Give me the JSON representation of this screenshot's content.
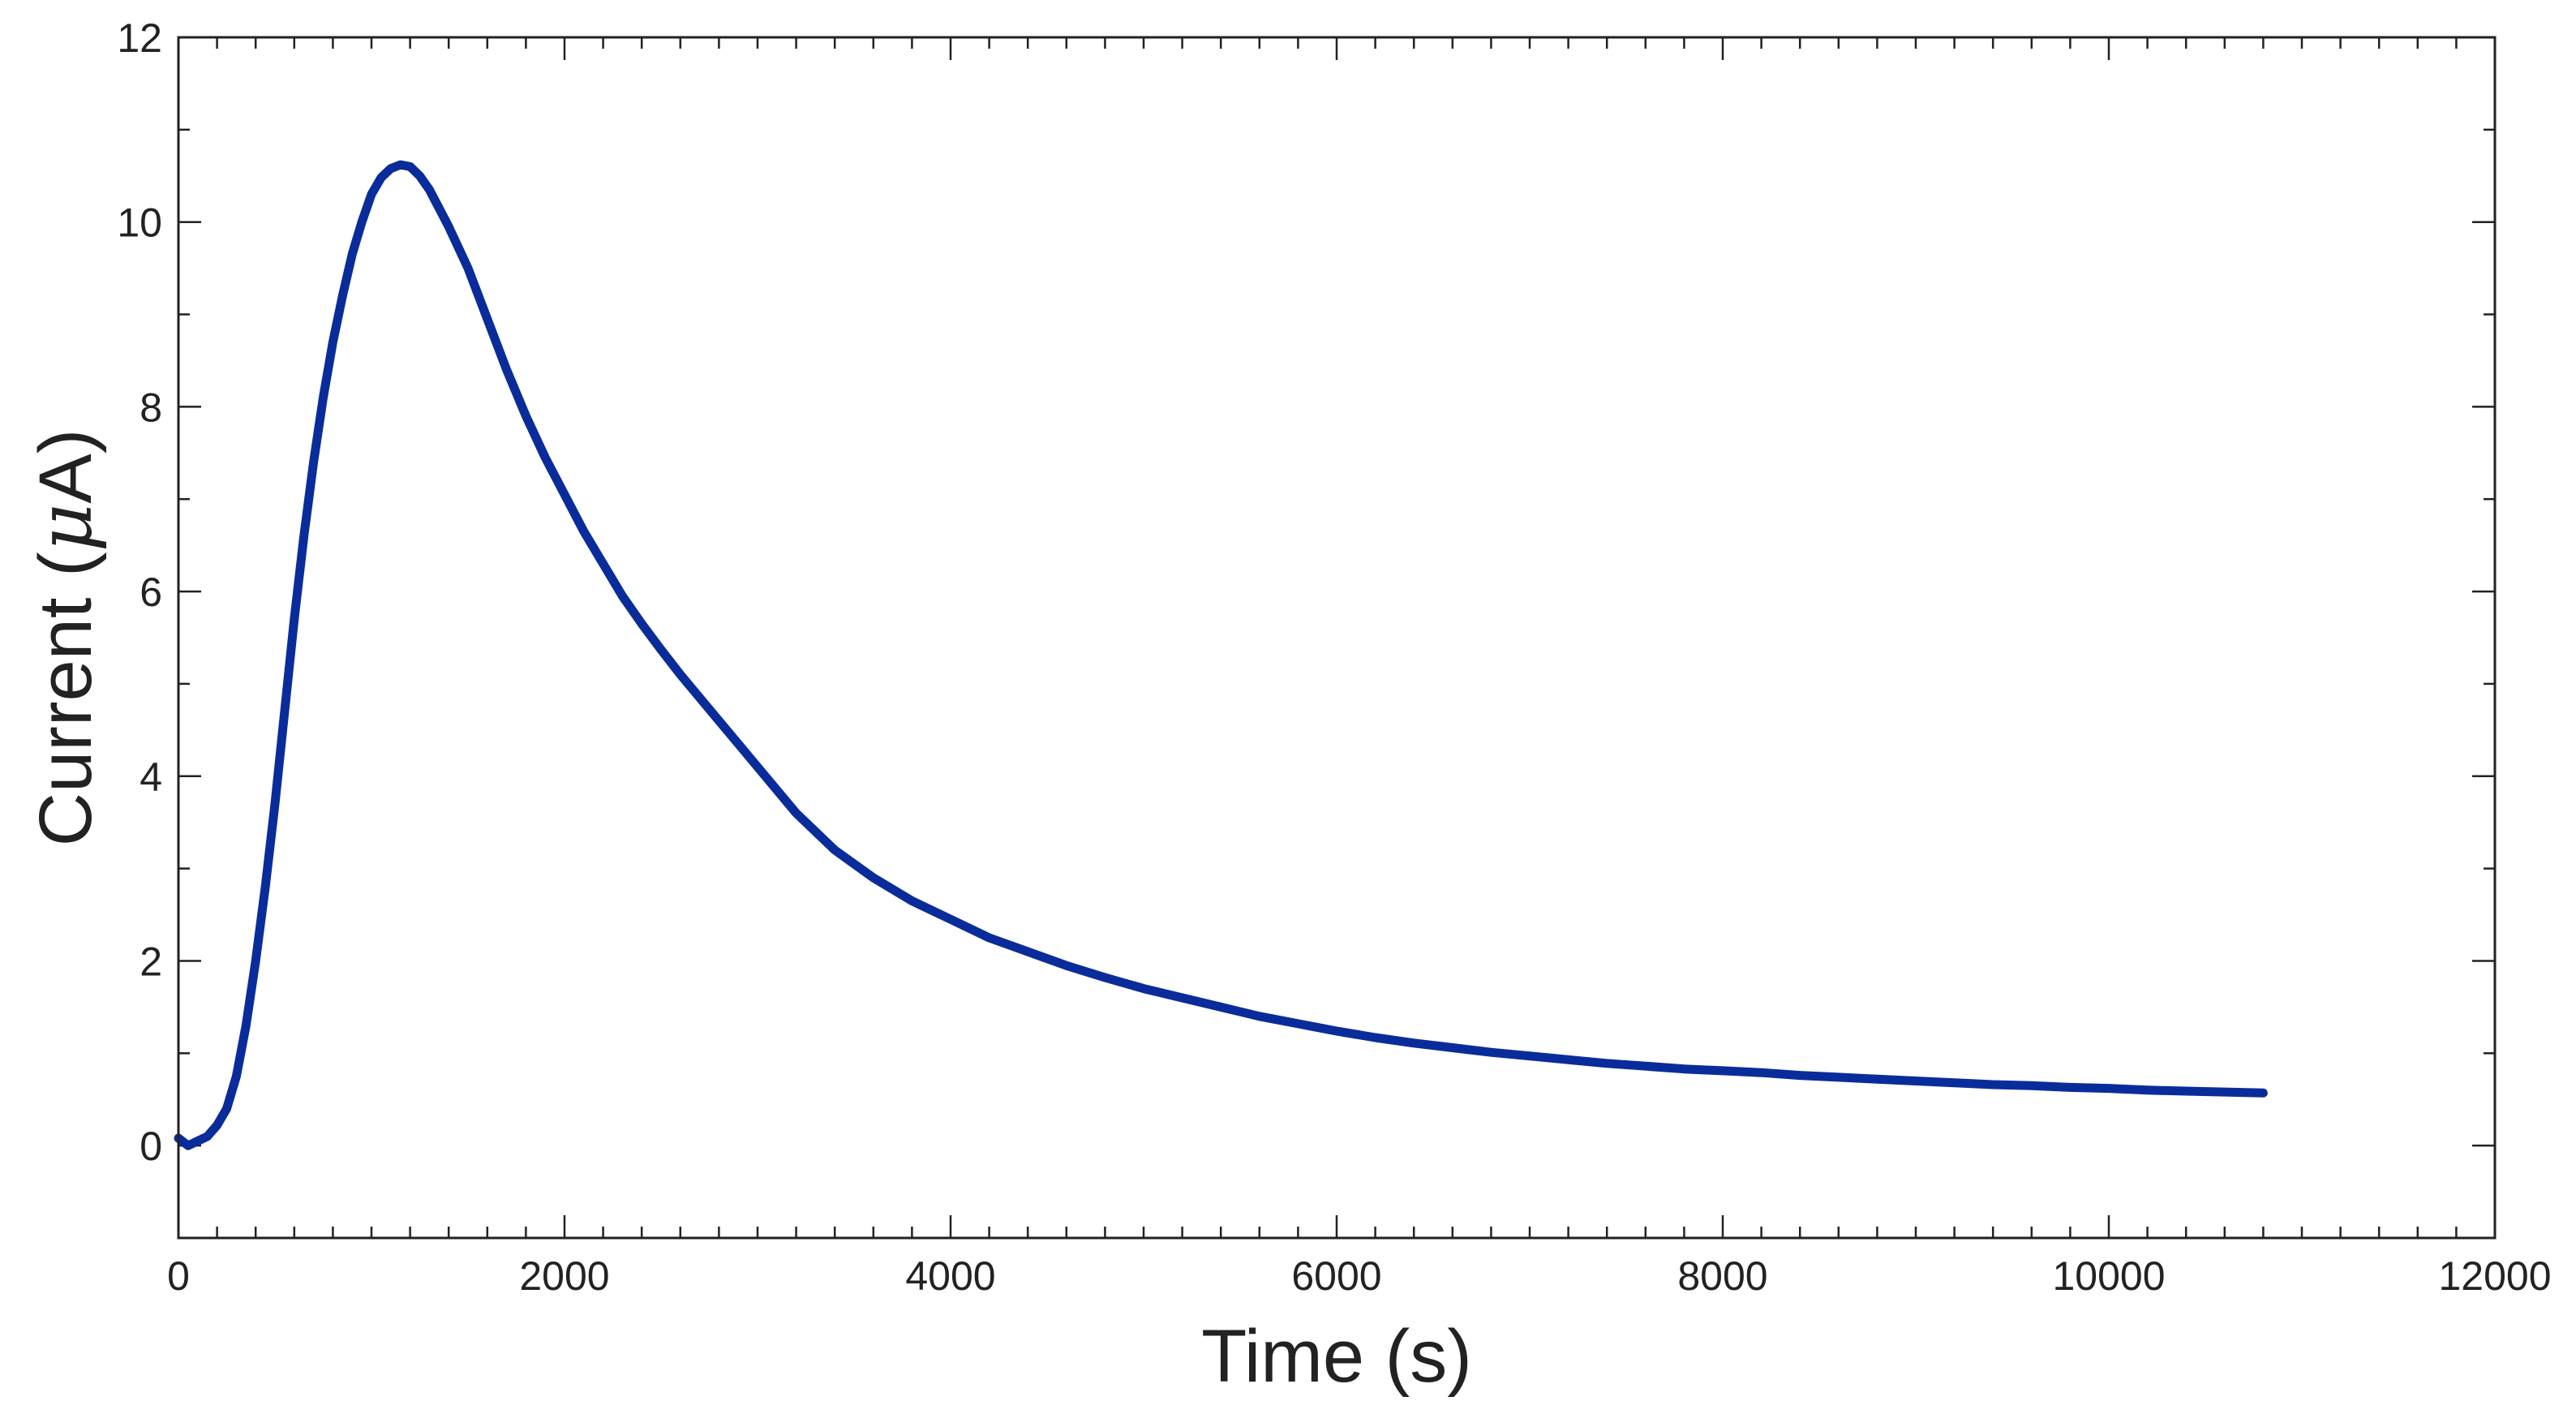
{
  "chart_data": {
    "type": "line",
    "title": "",
    "xlabel": "Time (s)",
    "ylabel": {
      "prefix": "Current (",
      "unit_symbol": "μ",
      "suffix": "A)"
    },
    "xlim": [
      0,
      12000
    ],
    "ylim": [
      -1,
      12
    ],
    "xticks": [
      0,
      2000,
      4000,
      6000,
      8000,
      10000,
      12000
    ],
    "yticks": [
      0,
      2,
      4,
      6,
      8,
      10,
      12
    ],
    "x_minor_step": 200,
    "y_minor_step": 1,
    "grid": false,
    "legend": "none",
    "series": [
      {
        "color": "#0a2c9b",
        "points": [
          [
            0,
            0.08
          ],
          [
            50,
            0.0
          ],
          [
            100,
            0.05
          ],
          [
            150,
            0.1
          ],
          [
            200,
            0.22
          ],
          [
            250,
            0.4
          ],
          [
            300,
            0.75
          ],
          [
            350,
            1.3
          ],
          [
            400,
            2.0
          ],
          [
            450,
            2.8
          ],
          [
            500,
            3.7
          ],
          [
            550,
            4.7
          ],
          [
            600,
            5.7
          ],
          [
            650,
            6.6
          ],
          [
            700,
            7.4
          ],
          [
            750,
            8.1
          ],
          [
            800,
            8.7
          ],
          [
            850,
            9.2
          ],
          [
            900,
            9.65
          ],
          [
            950,
            10.0
          ],
          [
            1000,
            10.3
          ],
          [
            1050,
            10.48
          ],
          [
            1100,
            10.58
          ],
          [
            1150,
            10.62
          ],
          [
            1200,
            10.6
          ],
          [
            1250,
            10.5
          ],
          [
            1300,
            10.35
          ],
          [
            1350,
            10.15
          ],
          [
            1400,
            9.95
          ],
          [
            1500,
            9.5
          ],
          [
            1600,
            8.95
          ],
          [
            1700,
            8.4
          ],
          [
            1800,
            7.9
          ],
          [
            1900,
            7.45
          ],
          [
            2000,
            7.05
          ],
          [
            2100,
            6.65
          ],
          [
            2200,
            6.3
          ],
          [
            2300,
            5.95
          ],
          [
            2400,
            5.65
          ],
          [
            2500,
            5.37
          ],
          [
            2600,
            5.1
          ],
          [
            2700,
            4.85
          ],
          [
            2800,
            4.6
          ],
          [
            2900,
            4.35
          ],
          [
            3000,
            4.1
          ],
          [
            3200,
            3.6
          ],
          [
            3400,
            3.2
          ],
          [
            3600,
            2.9
          ],
          [
            3800,
            2.65
          ],
          [
            4000,
            2.45
          ],
          [
            4200,
            2.25
          ],
          [
            4400,
            2.1
          ],
          [
            4600,
            1.95
          ],
          [
            4800,
            1.82
          ],
          [
            5000,
            1.7
          ],
          [
            5200,
            1.6
          ],
          [
            5400,
            1.5
          ],
          [
            5600,
            1.4
          ],
          [
            5800,
            1.32
          ],
          [
            6000,
            1.24
          ],
          [
            6200,
            1.17
          ],
          [
            6400,
            1.11
          ],
          [
            6600,
            1.06
          ],
          [
            6800,
            1.01
          ],
          [
            7000,
            0.97
          ],
          [
            7200,
            0.93
          ],
          [
            7400,
            0.89
          ],
          [
            7600,
            0.86
          ],
          [
            7800,
            0.83
          ],
          [
            8000,
            0.81
          ],
          [
            8200,
            0.79
          ],
          [
            8400,
            0.76
          ],
          [
            8600,
            0.74
          ],
          [
            8800,
            0.72
          ],
          [
            9000,
            0.7
          ],
          [
            9200,
            0.68
          ],
          [
            9400,
            0.66
          ],
          [
            9600,
            0.65
          ],
          [
            9800,
            0.63
          ],
          [
            10000,
            0.62
          ],
          [
            10200,
            0.6
          ],
          [
            10400,
            0.59
          ],
          [
            10600,
            0.58
          ],
          [
            10800,
            0.57
          ]
        ]
      }
    ]
  }
}
